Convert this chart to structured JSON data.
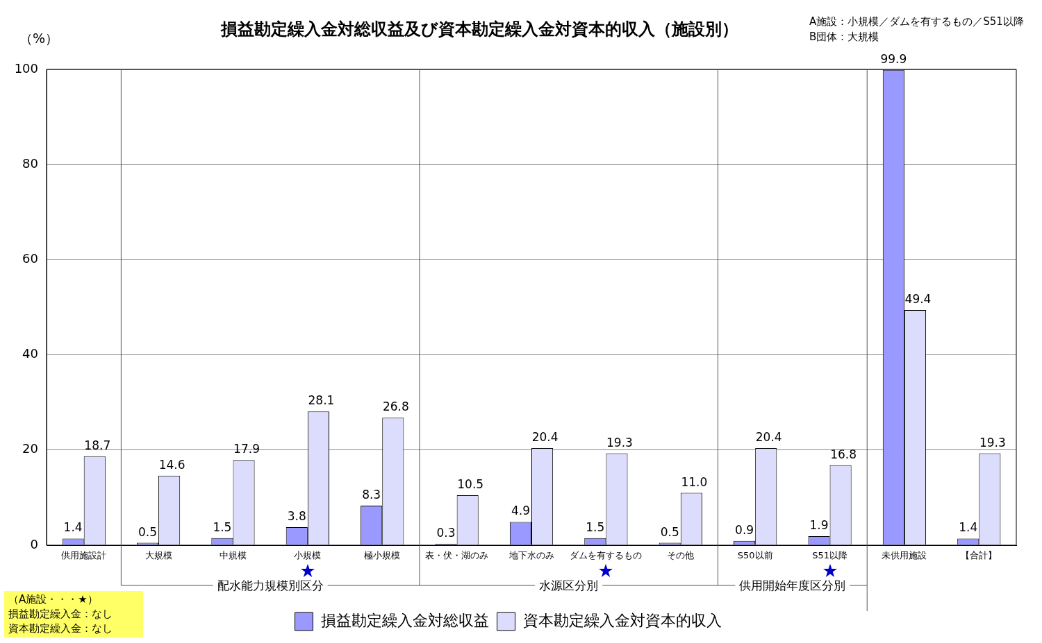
{
  "chart_data": {
    "type": "bar",
    "title": "損益勘定繰入金対総収益及び資本勘定繰入金対資本的収入（施設別）",
    "ylabel": "（%）",
    "categories": [
      "供用施設計",
      "大規模",
      "中規模",
      "小規模",
      "極小規模",
      "表・伏・湖のみ",
      "地下水のみ",
      "ダムを有するもの",
      "その他",
      "S50以前",
      "S51以降",
      "未供用施設",
      "【合計】"
    ],
    "series": [
      {
        "name": "損益勘定繰入金対総収益",
        "color": "#9999ff",
        "values": [
          1.4,
          0.5,
          1.5,
          3.8,
          8.3,
          0.3,
          4.9,
          1.5,
          0.5,
          0.9,
          1.9,
          99.9,
          1.4
        ],
        "value_labels": [
          "1.4",
          "0.5",
          "1.5",
          "3.8",
          "8.3",
          "0.3",
          "4.9",
          "1.5",
          "0.5",
          "0.9",
          "1.9",
          "99.9",
          "1.4"
        ]
      },
      {
        "name": "資本勘定繰入金対資本的収入",
        "color": "#dcdcfc",
        "values": [
          18.7,
          14.6,
          17.9,
          28.1,
          26.8,
          10.5,
          20.4,
          19.3,
          11.0,
          20.4,
          16.8,
          49.4,
          19.3
        ],
        "value_labels": [
          "18.7",
          "14.6",
          "17.9",
          "28.1",
          "26.8",
          "10.5",
          "20.4",
          "19.3",
          "11.0",
          "20.4",
          "16.8",
          "49.4",
          "19.3"
        ]
      }
    ],
    "ylim": [
      0,
      100
    ],
    "yticks": [
      0,
      20,
      40,
      60,
      80,
      100
    ],
    "grid": "y",
    "legend": "bottom",
    "annotations": [
      "A施設：小規模／ダムを有するもの／S51以降",
      "B団体：大規模",
      "（A施設・・・★）",
      "損益勘定繰入金：なし",
      "資本勘定繰入金：なし",
      "配水能力規模別区分",
      "水源区分別",
      "供用開始年度区分別"
    ]
  }
}
